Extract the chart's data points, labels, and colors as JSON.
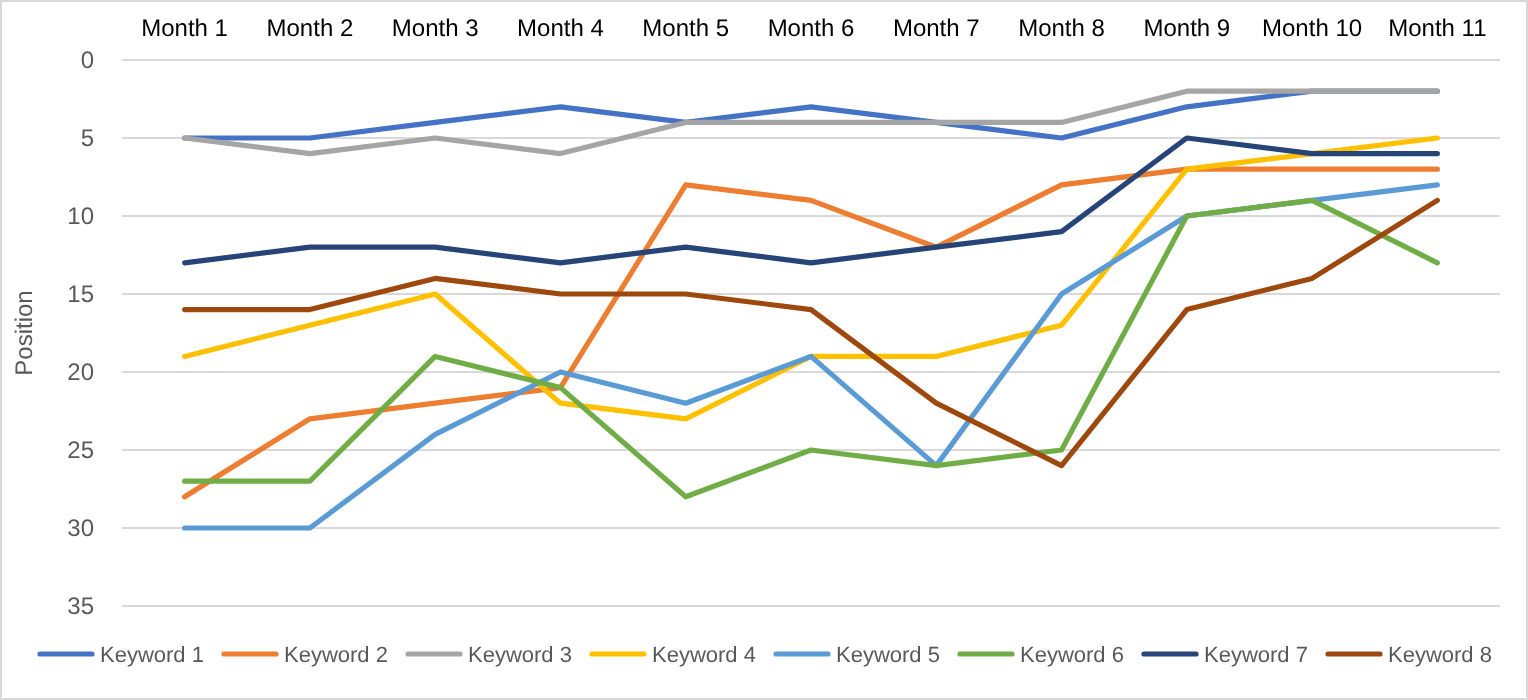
{
  "chart_data": {
    "type": "line",
    "ylabel": "Position",
    "categories": [
      "Month 1",
      "Month 2",
      "Month 3",
      "Month 4",
      "Month 5",
      "Month 6",
      "Month 7",
      "Month 8",
      "Month 9",
      "Month 10",
      "Month 11"
    ],
    "ylim": [
      35,
      0
    ],
    "yticks": [
      0,
      5,
      10,
      15,
      20,
      25,
      30,
      35
    ],
    "grid": "y",
    "legend": "bottom",
    "marker": "none",
    "line_style": "solid",
    "series": [
      {
        "name": "Keyword 1",
        "color": "#4472c4",
        "values": [
          5,
          5,
          4,
          3,
          4,
          3,
          4,
          5,
          3,
          2,
          2
        ]
      },
      {
        "name": "Keyword 2",
        "color": "#ed7d31",
        "values": [
          28,
          23,
          22,
          21,
          8,
          9,
          12,
          8,
          7,
          7,
          7
        ]
      },
      {
        "name": "Keyword 3",
        "color": "#a5a5a5",
        "values": [
          5,
          6,
          5,
          6,
          4,
          4,
          4,
          4,
          2,
          2,
          2
        ]
      },
      {
        "name": "Keyword 4",
        "color": "#ffc000",
        "values": [
          19,
          17,
          15,
          22,
          23,
          19,
          19,
          17,
          7,
          6,
          5
        ]
      },
      {
        "name": "Keyword 5",
        "color": "#5b9bd5",
        "values": [
          30,
          30,
          24,
          20,
          22,
          19,
          26,
          15,
          10,
          9,
          8
        ]
      },
      {
        "name": "Keyword 6",
        "color": "#70ad47",
        "values": [
          27,
          27,
          19,
          21,
          28,
          25,
          26,
          25,
          10,
          9,
          13
        ]
      },
      {
        "name": "Keyword 7",
        "color": "#264478",
        "values": [
          13,
          12,
          12,
          13,
          12,
          13,
          12,
          11,
          5,
          6,
          6
        ]
      },
      {
        "name": "Keyword 8",
        "color": "#9e480e",
        "values": [
          16,
          16,
          14,
          15,
          15,
          16,
          22,
          26,
          16,
          14,
          9
        ]
      }
    ]
  }
}
